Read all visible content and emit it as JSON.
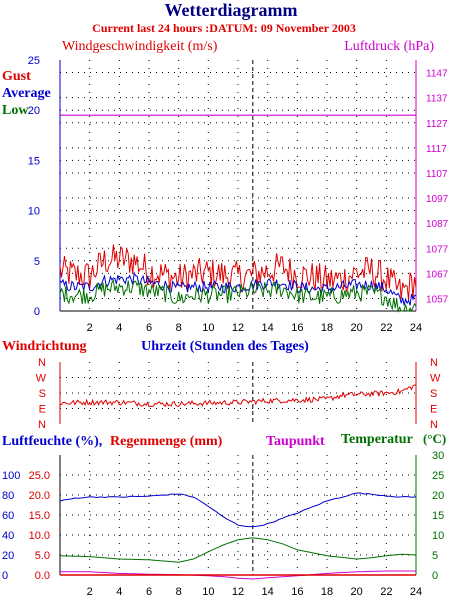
{
  "title": "Wetterdiagramm",
  "subtitle": "Current last 24 hours :DATUM: 09 November 2003",
  "colors": {
    "red": "#e00000",
    "blue": "#0000d0",
    "green": "#007000",
    "magenta": "#d000d0",
    "navy": "#000080",
    "grid": "#000000"
  },
  "chart_data": [
    {
      "type": "line",
      "panel": "wind",
      "left_title": "Windgeschwindigkeit (m/s)",
      "right_title": "Luftdruck (hPa)",
      "legend": [
        "Gust",
        "Average",
        "Low"
      ],
      "x": {
        "min": 0,
        "max": 24,
        "ticks": [
          2,
          4,
          6,
          8,
          10,
          12,
          14,
          16,
          18,
          20,
          22,
          24
        ],
        "label": "Uhrzeit (Stunden des Tages)"
      },
      "y_left": {
        "min": 0,
        "max": 25,
        "ticks": [
          0,
          5,
          10,
          15,
          20,
          25
        ]
      },
      "y_right": {
        "min": 1052,
        "max": 1152,
        "ticks": [
          1057,
          1067,
          1077,
          1087,
          1097,
          1107,
          1117,
          1127,
          1137,
          1147
        ]
      },
      "marker_hour": 13,
      "series": [
        {
          "name": "Gust",
          "color": "#e00000",
          "x": [
            0,
            1,
            2,
            3,
            4,
            5,
            6,
            7,
            8,
            9,
            10,
            11,
            12,
            13,
            14,
            15,
            16,
            17,
            18,
            19,
            20,
            21,
            22,
            23,
            24
          ],
          "values": [
            4.0,
            3.6,
            3.5,
            5.0,
            5.2,
            5.0,
            4.0,
            3.6,
            3.2,
            3.6,
            3.8,
            3.6,
            3.4,
            3.6,
            4.0,
            4.4,
            3.6,
            3.4,
            3.0,
            3.2,
            3.8,
            4.0,
            3.2,
            1.8,
            3.0
          ]
        },
        {
          "name": "Average",
          "color": "#0000d0",
          "x": [
            0,
            1,
            2,
            3,
            4,
            5,
            6,
            7,
            8,
            9,
            10,
            11,
            12,
            13,
            14,
            15,
            16,
            17,
            18,
            19,
            20,
            21,
            22,
            23,
            24
          ],
          "values": [
            2.6,
            2.4,
            2.4,
            3.0,
            3.2,
            3.2,
            2.8,
            2.6,
            2.2,
            2.4,
            2.4,
            2.4,
            2.4,
            2.6,
            2.8,
            2.8,
            2.4,
            2.2,
            2.2,
            2.4,
            2.6,
            2.6,
            2.2,
            1.0,
            1.2
          ]
        },
        {
          "name": "Low",
          "color": "#007000",
          "x": [
            0,
            1,
            2,
            3,
            4,
            5,
            6,
            7,
            8,
            9,
            10,
            11,
            12,
            13,
            14,
            15,
            16,
            17,
            18,
            19,
            20,
            21,
            22,
            23,
            24
          ],
          "values": [
            1.8,
            1.6,
            1.6,
            2.2,
            2.4,
            2.4,
            2.0,
            1.8,
            1.2,
            1.6,
            1.6,
            1.6,
            1.8,
            2.0,
            2.0,
            2.2,
            1.6,
            1.4,
            1.4,
            1.6,
            1.8,
            1.8,
            1.4,
            0.2,
            0.4
          ]
        },
        {
          "name": "Luftdruck",
          "color": "#d000d0",
          "axis": "right",
          "x": [
            0,
            24
          ],
          "values": [
            1130,
            1130
          ]
        }
      ]
    },
    {
      "type": "line",
      "panel": "direction",
      "left_title": "Windrichtung",
      "categories": [
        "N",
        "W",
        "S",
        "E",
        "N"
      ],
      "x": {
        "min": 0,
        "max": 24
      },
      "series": [
        {
          "name": "Windrichtung",
          "color": "#e00000",
          "x": [
            0,
            2,
            4,
            6,
            8,
            10,
            12,
            14,
            16,
            18,
            19,
            20,
            22,
            23,
            24
          ],
          "values": [
            1.35,
            1.4,
            1.4,
            1.3,
            1.3,
            1.35,
            1.4,
            1.5,
            1.55,
            1.6,
            1.85,
            1.9,
            2.0,
            2.1,
            2.5
          ]
        }
      ]
    },
    {
      "type": "line",
      "panel": "climate",
      "left_title": "Luftfeuchte (%),",
      "left_title_2": "Regenmenge (mm)",
      "mid_title": "Taupunkt",
      "right_title": "Temperatur",
      "right_unit": "(°C)",
      "x": {
        "min": 0,
        "max": 24,
        "ticks": [
          2,
          4,
          6,
          8,
          10,
          12,
          14,
          16,
          18,
          20,
          22,
          24
        ]
      },
      "y_left_humidity": {
        "min": 0,
        "max": 120,
        "ticks": [
          0,
          20,
          40,
          60,
          80,
          100
        ]
      },
      "y_left_rain": {
        "min": 0,
        "max": 30,
        "ticks": [
          "0.0",
          "5.0",
          "10.0",
          "15.0",
          "20.0",
          "25.0"
        ]
      },
      "y_right": {
        "min": 0,
        "max": 30,
        "ticks": [
          0,
          5,
          10,
          15,
          20,
          25,
          30
        ]
      },
      "marker_hour": 13,
      "series": [
        {
          "name": "Luftfeuchte",
          "color": "#0000d0",
          "axis": "right",
          "x": [
            0,
            1,
            2,
            4,
            6,
            8,
            9,
            10,
            11,
            12,
            13,
            14,
            16,
            18,
            20,
            21,
            22,
            23,
            24
          ],
          "values": [
            18.5,
            19.2,
            19.5,
            19.5,
            19.7,
            20.3,
            19.5,
            17.2,
            14.5,
            12.5,
            12.0,
            12.8,
            15.5,
            18.5,
            20.5,
            20.2,
            19.8,
            19.5,
            19.5
          ]
        },
        {
          "name": "Temperatur",
          "color": "#007000",
          "axis": "right",
          "x": [
            0,
            2,
            4,
            6,
            8,
            9,
            10,
            11,
            12,
            13,
            14,
            15,
            16,
            18,
            20,
            21,
            22,
            23,
            24
          ],
          "values": [
            4.8,
            4.6,
            4.0,
            3.8,
            3.2,
            4.0,
            5.8,
            7.5,
            8.8,
            9.3,
            8.8,
            7.8,
            6.3,
            4.8,
            4.0,
            4.3,
            4.8,
            5.2,
            5.0
          ]
        },
        {
          "name": "Taupunkt",
          "color": "#d000d0",
          "axis": "right",
          "x": [
            0,
            2,
            4,
            6,
            8,
            10,
            11,
            12,
            13,
            14,
            16,
            18,
            20,
            22,
            24
          ],
          "values": [
            0.8,
            0.8,
            0.4,
            0.2,
            0.1,
            -0.2,
            -0.4,
            -0.8,
            -1.0,
            -0.7,
            -0.2,
            0.4,
            0.8,
            1.0,
            1.0
          ]
        },
        {
          "name": "Regenmenge",
          "color": "#e00000",
          "axis": "right",
          "x": [
            0,
            24
          ],
          "values": [
            0,
            0
          ]
        }
      ]
    }
  ]
}
